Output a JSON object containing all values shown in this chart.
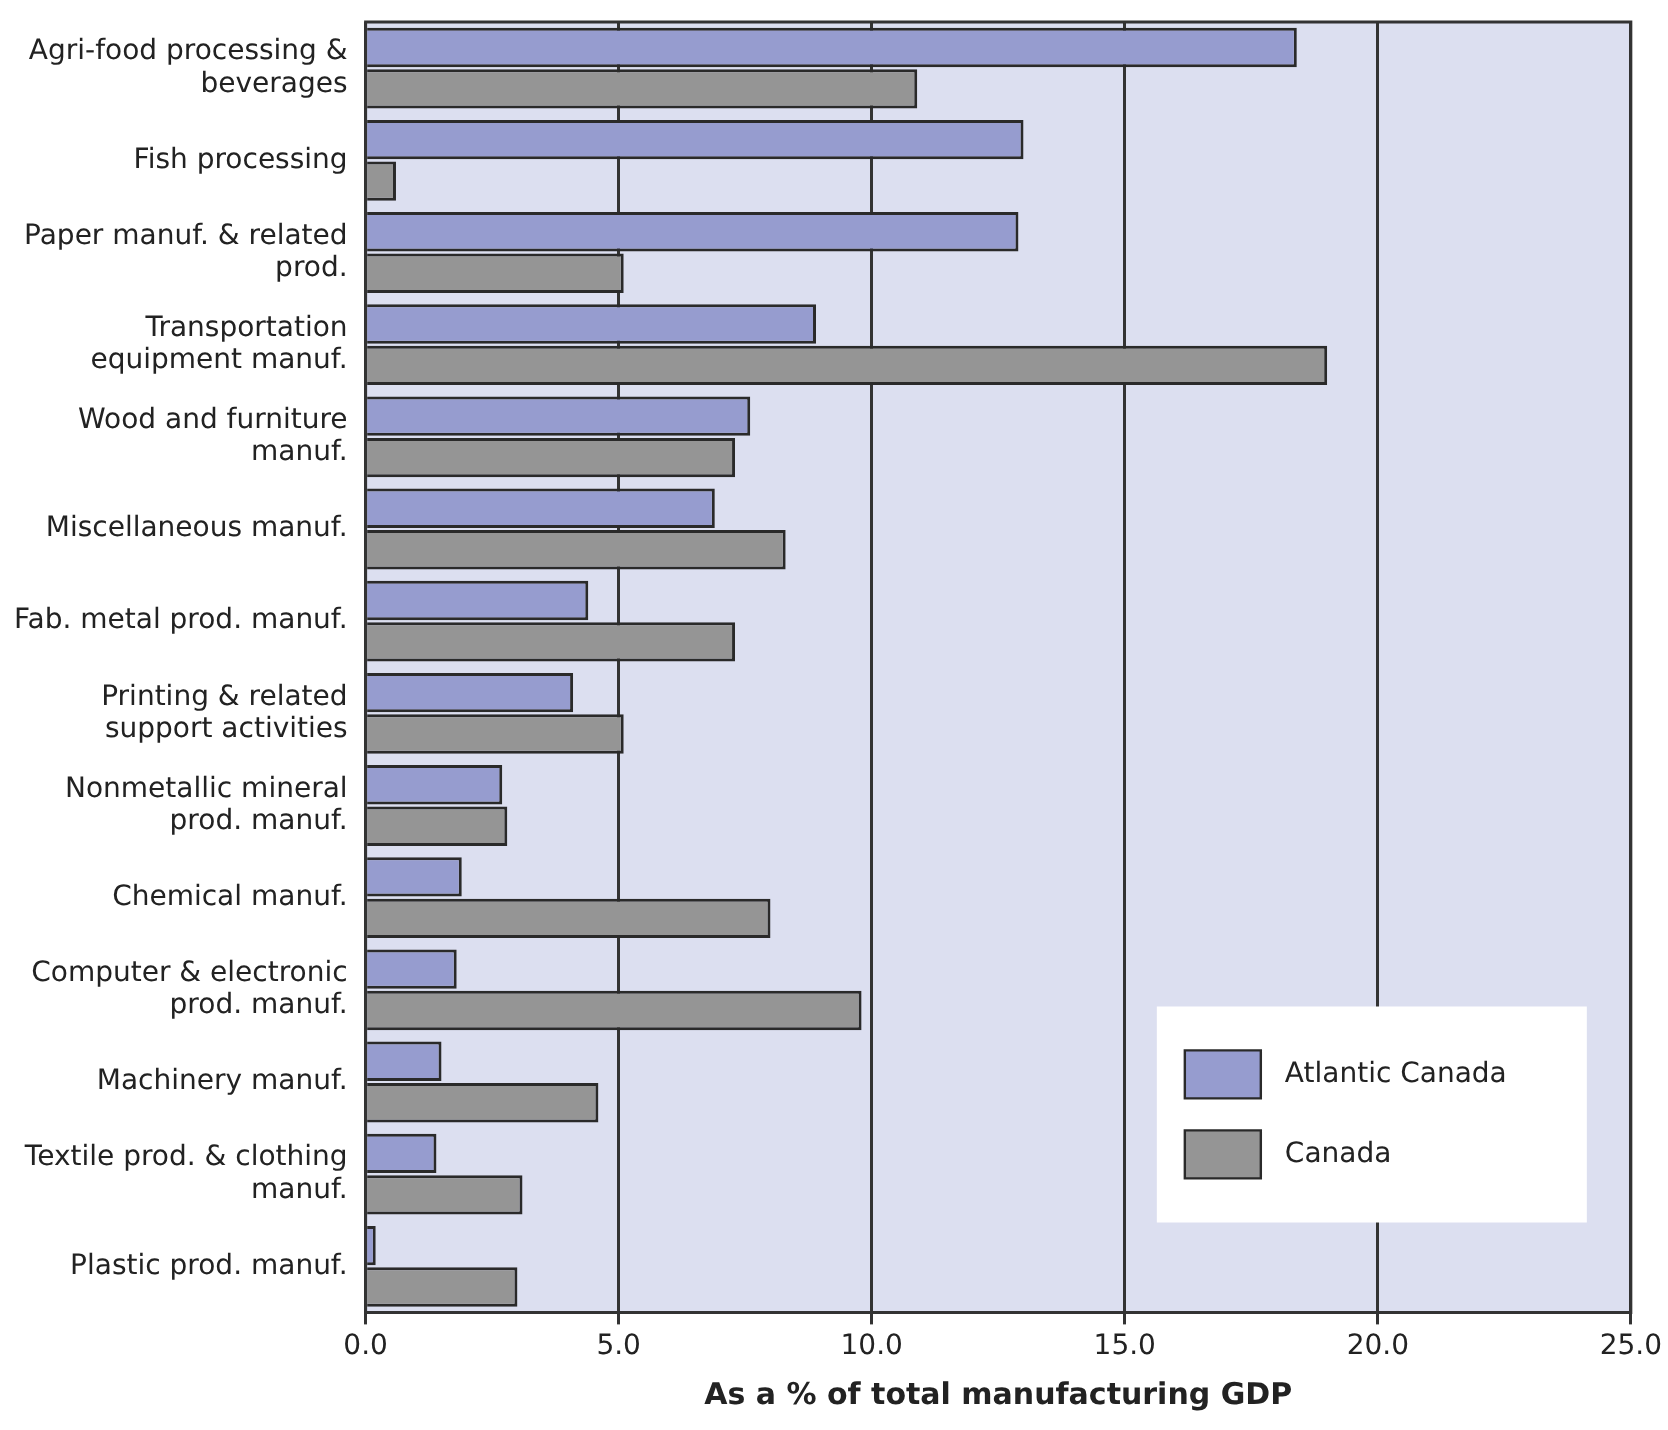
{
  "chart_data": {
    "type": "bar",
    "orientation": "horizontal",
    "xlabel": "As a % of total manufacturing GDP",
    "categories": [
      "Agri-food processing & beverages",
      "Fish processing",
      "Paper manuf. & related prod.",
      "Transportation equipment manuf.",
      "Wood and furniture manuf.",
      "Miscellaneous manuf.",
      "Fab. metal prod. manuf.",
      "Printing & related support activities",
      "Nonmetallic mineral prod. manuf.",
      "Chemical manuf.",
      "Computer & electronic prod. manuf.",
      "Machinery manuf.",
      "Textile prod. & clothing manuf.",
      "Plastic prod. manuf."
    ],
    "series": [
      {
        "name": "Atlantic Canada",
        "color": "#969ccf",
        "values": [
          18.4,
          13.0,
          12.9,
          8.9,
          7.6,
          6.9,
          4.4,
          4.1,
          2.7,
          1.9,
          1.8,
          1.5,
          1.4,
          0.2
        ]
      },
      {
        "name": "Canada",
        "color": "#959595",
        "values": [
          10.9,
          0.6,
          5.1,
          19.0,
          7.3,
          8.3,
          7.3,
          5.1,
          2.8,
          8.0,
          9.8,
          4.6,
          3.1,
          3.0
        ]
      }
    ],
    "xlim": [
      0,
      25
    ],
    "xticks": [
      {
        "value": 0,
        "label": "0.0"
      },
      {
        "value": 5,
        "label": "5.0"
      },
      {
        "value": 10,
        "label": "10.0"
      },
      {
        "value": 15,
        "label": "15.0"
      },
      {
        "value": 20,
        "label": "20.0"
      },
      {
        "value": 25,
        "label": "25.0"
      }
    ],
    "grid": "x",
    "legend": "bottom right"
  }
}
